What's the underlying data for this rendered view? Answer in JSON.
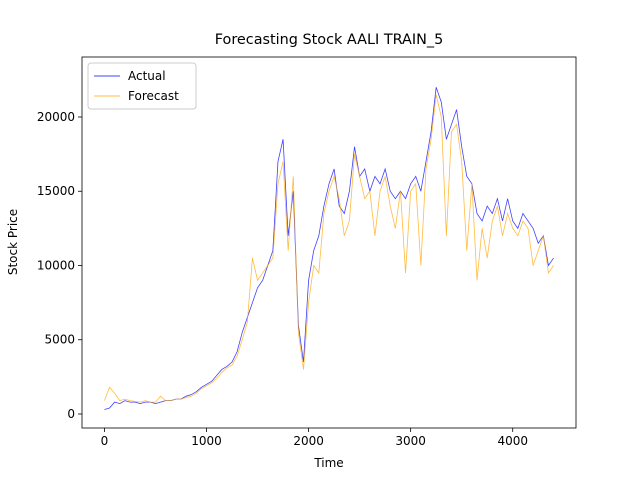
{
  "chart_data": {
    "type": "line",
    "title": "Forecasting Stock AALI TRAIN_5",
    "x_label": "Time",
    "y_label": "Stock Price",
    "x": [
      0,
      50,
      100,
      150,
      200,
      250,
      300,
      350,
      400,
      450,
      500,
      550,
      600,
      650,
      700,
      750,
      800,
      850,
      900,
      950,
      1000,
      1050,
      1100,
      1150,
      1200,
      1250,
      1300,
      1350,
      1400,
      1450,
      1500,
      1550,
      1600,
      1650,
      1700,
      1750,
      1800,
      1850,
      1900,
      1950,
      2000,
      2050,
      2100,
      2150,
      2200,
      2250,
      2300,
      2350,
      2400,
      2450,
      2500,
      2550,
      2600,
      2650,
      2700,
      2750,
      2800,
      2850,
      2900,
      2950,
      3000,
      3050,
      3100,
      3150,
      3200,
      3250,
      3300,
      3350,
      3400,
      3450,
      3500,
      3550,
      3600,
      3650,
      3700,
      3750,
      3800,
      3850,
      3900,
      3950,
      4000,
      4050,
      4100,
      4150,
      4200,
      4250,
      4300,
      4350,
      4400
    ],
    "series": [
      {
        "name": "Actual",
        "color": "#0000ff",
        "values": [
          300,
          400,
          800,
          700,
          900,
          800,
          800,
          700,
          800,
          800,
          700,
          800,
          900,
          900,
          1000,
          1000,
          1200,
          1300,
          1500,
          1800,
          2000,
          2200,
          2600,
          3000,
          3200,
          3500,
          4200,
          5500,
          6500,
          7500,
          8500,
          9000,
          10000,
          11000,
          17000,
          18500,
          12000,
          15000,
          6000,
          3500,
          9000,
          11000,
          12000,
          14000,
          15500,
          16500,
          14000,
          13500,
          15000,
          18000,
          16000,
          16500,
          15000,
          16000,
          15500,
          16500,
          15000,
          14500,
          15000,
          14500,
          15500,
          16000,
          15000,
          17000,
          19000,
          22000,
          21000,
          18500,
          19500,
          20500,
          18000,
          16000,
          15500,
          13500,
          13000,
          14000,
          13500,
          14500,
          13000,
          14500,
          13000,
          12500,
          13500,
          13000,
          12500,
          11500,
          12000,
          10000,
          10500
        ]
      },
      {
        "name": "Forecast",
        "color": "#ffa500",
        "values": [
          900,
          1800,
          1400,
          900,
          1000,
          900,
          850,
          800,
          900,
          800,
          800,
          1200,
          900,
          900,
          1000,
          1000,
          1100,
          1200,
          1400,
          1700,
          1900,
          2100,
          2400,
          2800,
          3100,
          3300,
          3900,
          5000,
          6200,
          10500,
          9000,
          9500,
          10000,
          10500,
          15500,
          17000,
          11000,
          16000,
          5500,
          3000,
          7500,
          10000,
          9500,
          13500,
          15000,
          16000,
          14500,
          12000,
          13000,
          17500,
          16000,
          14500,
          15000,
          12000,
          15000,
          16000,
          14000,
          12500,
          15000,
          9500,
          15000,
          15500,
          10000,
          16500,
          18500,
          21500,
          20000,
          12000,
          19000,
          19500,
          17000,
          11000,
          15500,
          9000,
          12500,
          10500,
          13000,
          14000,
          12000,
          13500,
          12500,
          12000,
          13000,
          12500,
          10000,
          11000,
          12000,
          9500,
          10000
        ]
      }
    ],
    "xlim": [
      -220,
      4620
    ],
    "ylim": [
      -943,
      24040
    ],
    "xticks": [
      0,
      1000,
      2000,
      3000,
      4000
    ],
    "yticks": [
      0,
      5000,
      10000,
      15000,
      20000
    ],
    "legend": "upper left"
  }
}
